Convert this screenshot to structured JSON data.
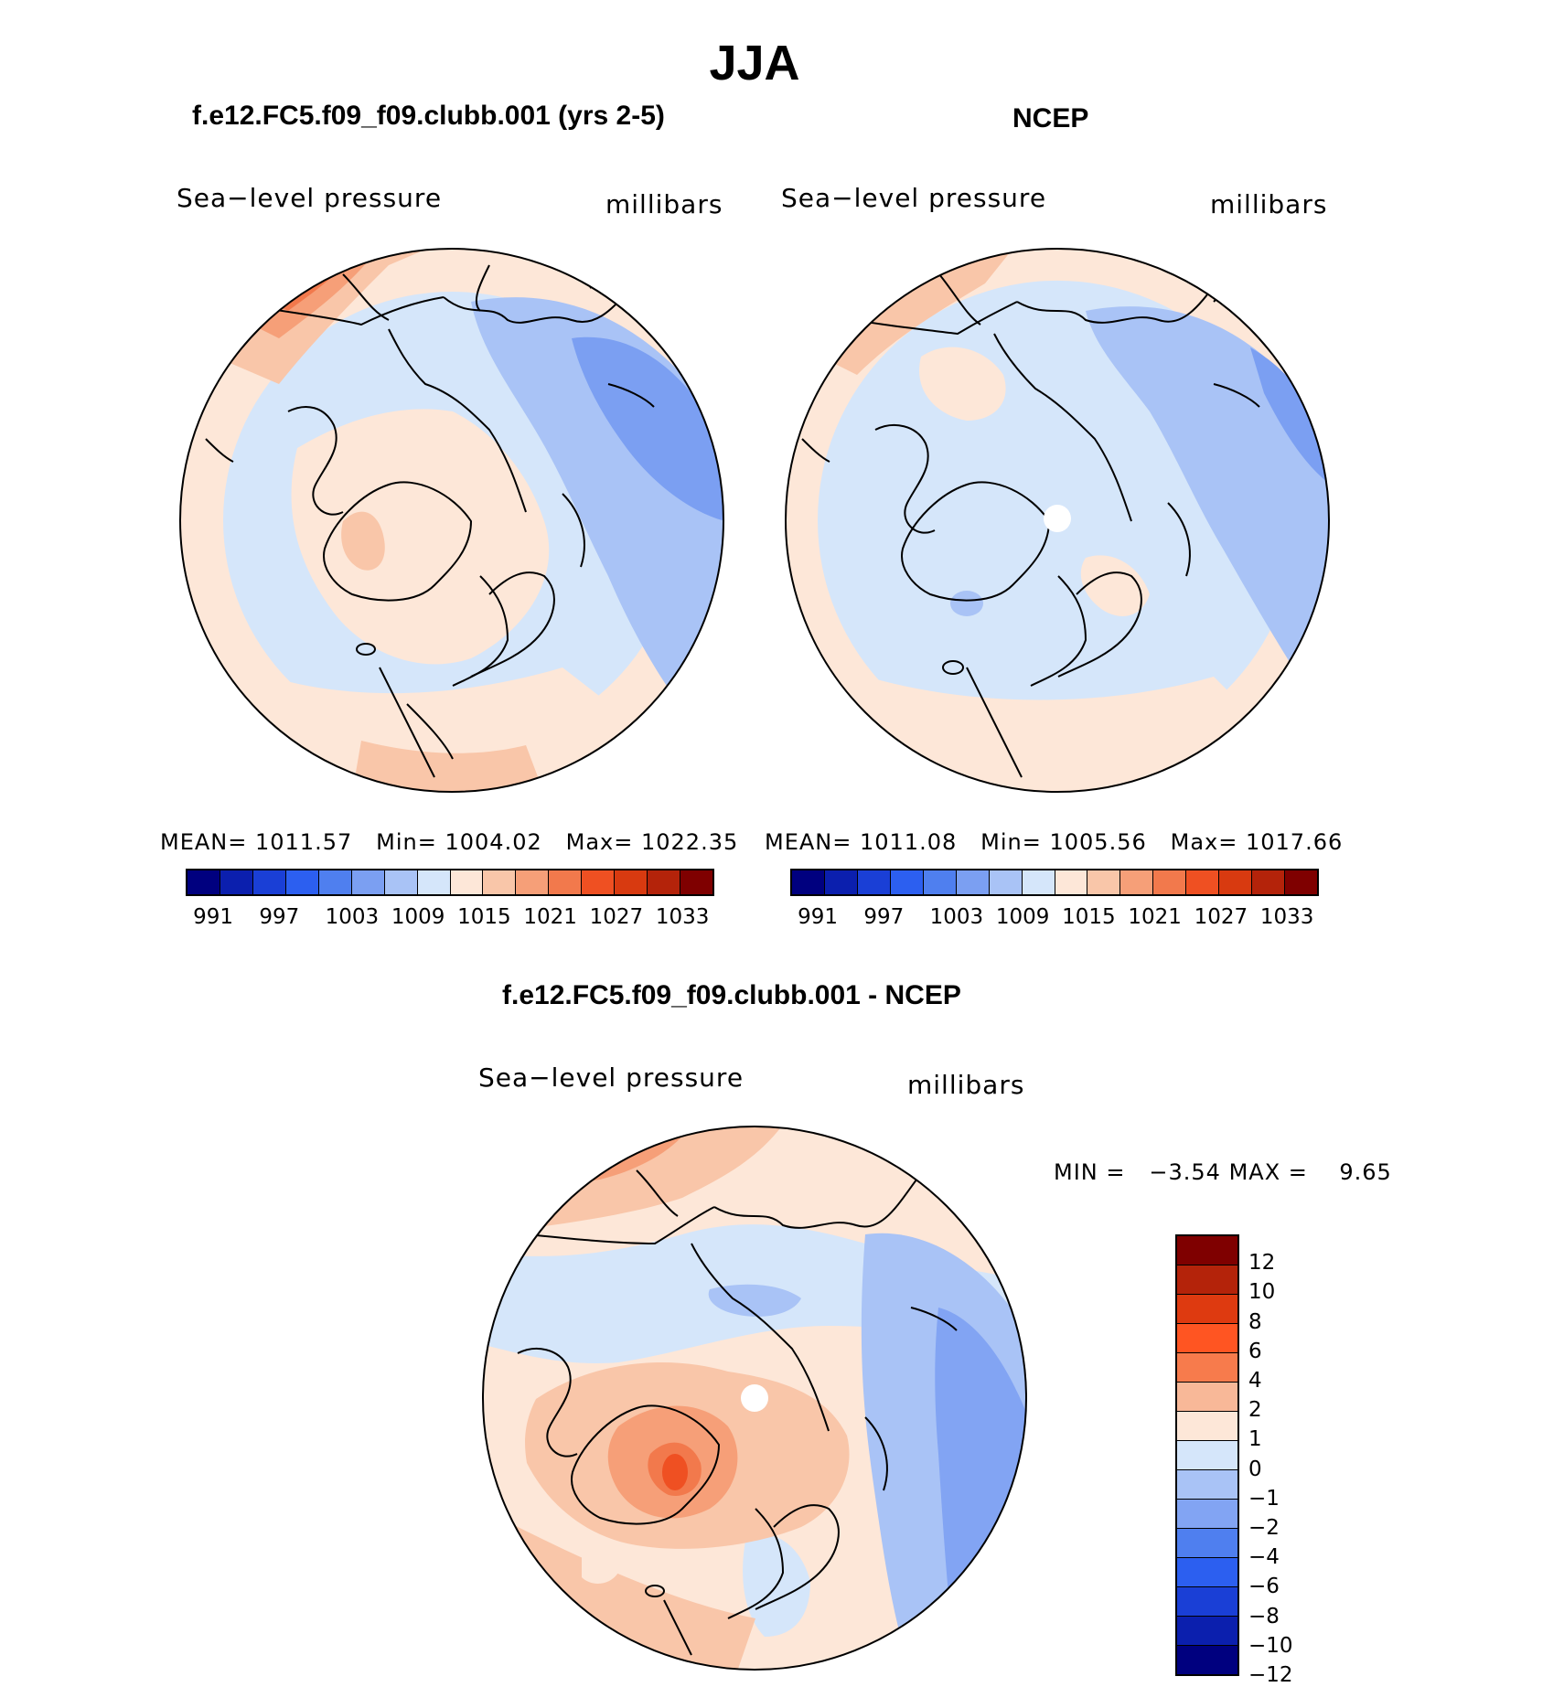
{
  "figure": {
    "title": "JJA"
  },
  "panels": [
    {
      "id": "model",
      "title": "f.e12.FC5.f09_f09.clubb.001 (yrs 2-5)",
      "variable_label": "Sea−level pressure",
      "units_label": "millibars",
      "stats": {
        "mean_label": "MEAN=",
        "mean": "1011.57",
        "min_label": "Min=",
        "min": "1004.02",
        "max_label": "Max=",
        "max": "1022.35"
      }
    },
    {
      "id": "obs",
      "title": "NCEP",
      "variable_label": "Sea−level pressure",
      "units_label": "millibars",
      "stats": {
        "mean_label": "MEAN=",
        "mean": "1011.08",
        "min_label": "Min=",
        "min": "1005.56",
        "max_label": "Max=",
        "max": "1017.66"
      }
    },
    {
      "id": "diff",
      "title": "f.e12.FC5.f09_f09.clubb.001 - NCEP",
      "variable_label": "Sea−level pressure",
      "units_label": "millibars",
      "stats": {
        "min_label": "MIN =",
        "min": "−3.54",
        "max_label": "MAX =",
        "max": "9.65"
      }
    }
  ],
  "abs_colorbar": {
    "colors": [
      "#00007f",
      "#0b1fae",
      "#1a3fd6",
      "#2c5ff0",
      "#4f7fef",
      "#7b9ff2",
      "#a9c3f6",
      "#d5e6fa",
      "#fde7d8",
      "#f9c6a9",
      "#f69f78",
      "#f2794c",
      "#ef5022",
      "#d83a10",
      "#b4230a",
      "#7f0000"
    ],
    "tick_labels": [
      "991",
      "997",
      "1003",
      "1009",
      "1015",
      "1021",
      "1027",
      "1033"
    ]
  },
  "diff_colorbar": {
    "colors": [
      "#7f0000",
      "#b4230a",
      "#de3a10",
      "#ff5522",
      "#f77b4c",
      "#f8b898",
      "#fde7d8",
      "#d5e6fa",
      "#a9c3f6",
      "#82a4f3",
      "#4f7fef",
      "#2c5ff0",
      "#1a3fd6",
      "#0b1fae",
      "#00007f"
    ],
    "tick_labels": [
      "12",
      "10",
      "8",
      "6",
      "4",
      "2",
      "1",
      "0",
      "−1",
      "−2",
      "−4",
      "−6",
      "−8",
      "−10",
      "−12"
    ]
  }
}
